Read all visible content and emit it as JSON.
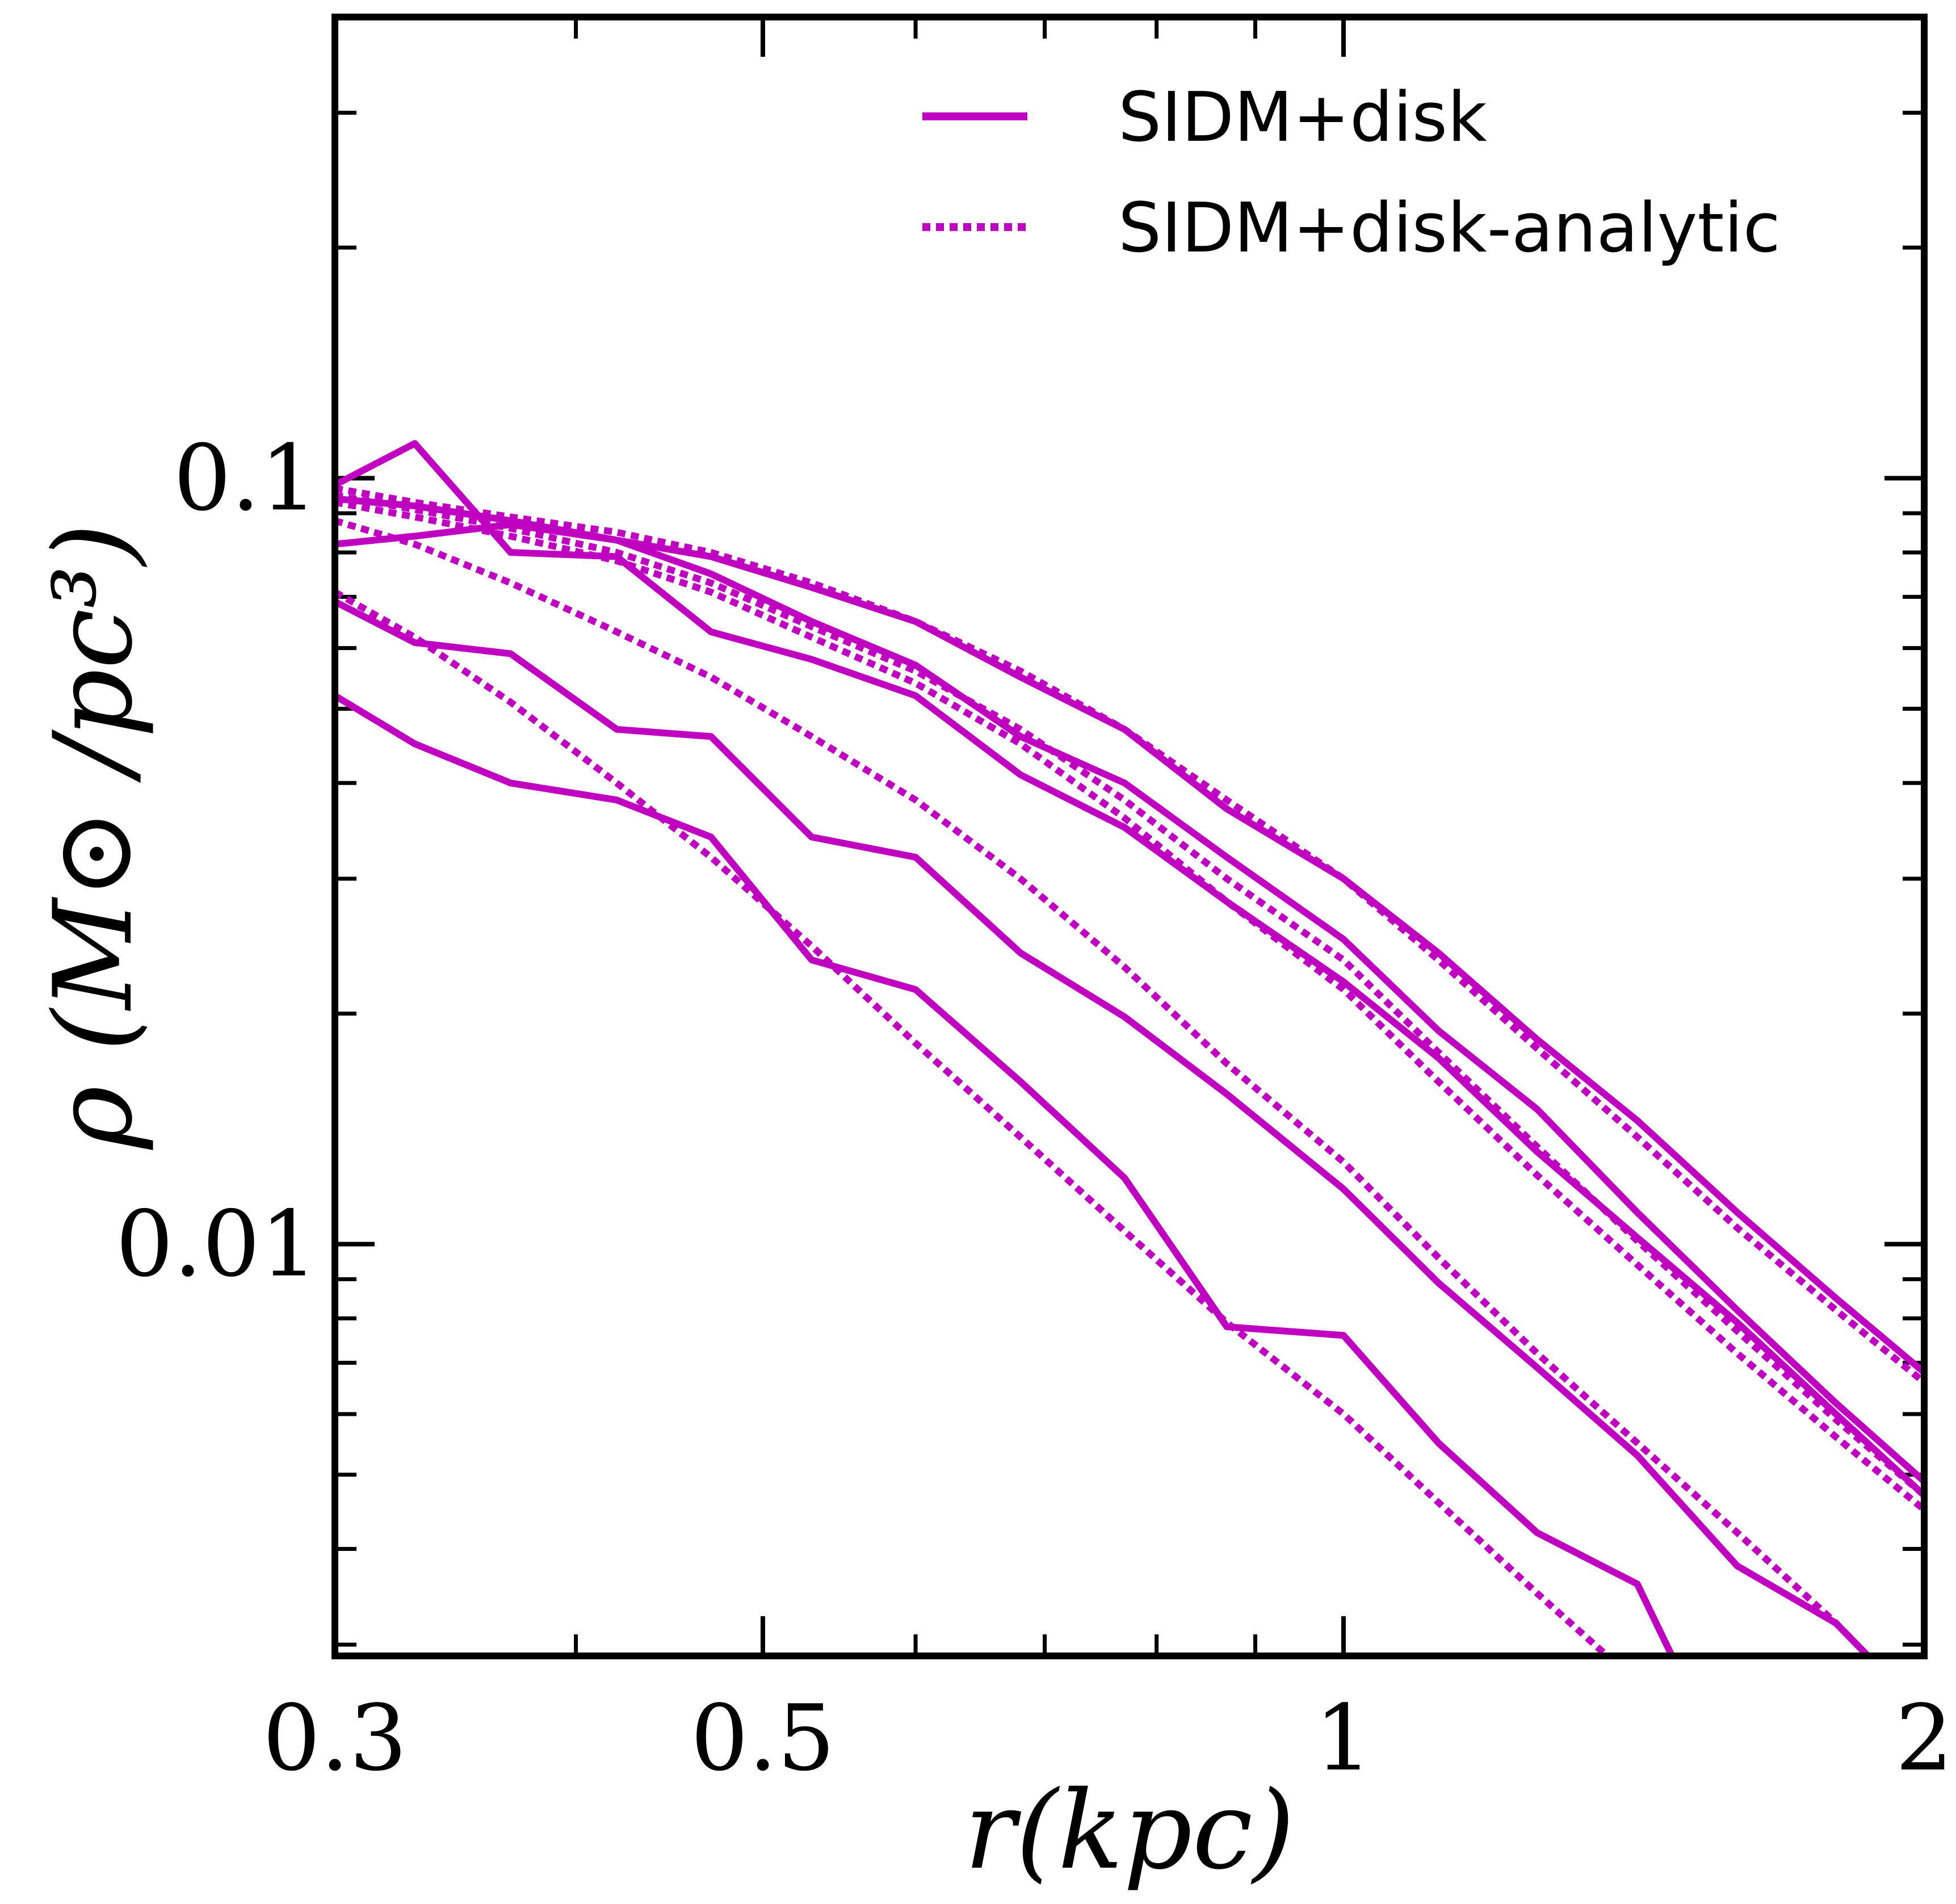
{
  "chart_data": {
    "type": "line",
    "title": "",
    "xlabel": "r(kpc)",
    "ylabel": "ρ (M⊙ /pc³)",
    "xscale": "log",
    "yscale": "log",
    "xlim": [
      0.3,
      2.0
    ],
    "ylim": [
      0.0029,
      0.4
    ],
    "xticks": [
      0.3,
      0.5,
      1,
      2
    ],
    "xtick_labels": [
      "0.3",
      "0.5",
      "1",
      "2"
    ],
    "yticks": [
      0.01,
      0.1
    ],
    "ytick_labels": [
      "0.01",
      "0.1"
    ],
    "color": "#c000c0",
    "legend": {
      "position": "top-right",
      "entries": [
        {
          "label": "SIDM+disk",
          "style": "solid"
        },
        {
          "label": "SIDM+disk-analytic",
          "style": "dotted"
        }
      ]
    },
    "series": [
      {
        "name": "SIDM+disk 1",
        "style": "solid",
        "x": [
          0.3,
          0.33,
          0.37,
          0.42,
          0.47,
          0.53,
          0.6,
          0.68,
          0.77,
          0.87,
          1.0,
          1.12,
          1.26,
          1.42,
          1.6,
          1.8,
          2.0
        ],
        "y": [
          0.082,
          0.084,
          0.087,
          0.083,
          0.079,
          0.072,
          0.065,
          0.055,
          0.047,
          0.037,
          0.03,
          0.024,
          0.0185,
          0.0145,
          0.011,
          0.0085,
          0.0068
        ]
      },
      {
        "name": "SIDM+disk 2",
        "style": "solid",
        "x": [
          0.3,
          0.33,
          0.37,
          0.42,
          0.47,
          0.53,
          0.6,
          0.68,
          0.77,
          0.87,
          1.0,
          1.12,
          1.26,
          1.42,
          1.6,
          1.8,
          2.0
        ],
        "y": [
          0.094,
          0.092,
          0.088,
          0.083,
          0.075,
          0.065,
          0.057,
          0.046,
          0.04,
          0.032,
          0.025,
          0.019,
          0.015,
          0.011,
          0.0082,
          0.0062,
          0.0049
        ]
      },
      {
        "name": "SIDM+disk 3",
        "style": "solid",
        "x": [
          0.3,
          0.33,
          0.37,
          0.42,
          0.47,
          0.53,
          0.6,
          0.68,
          0.77,
          0.87,
          1.0,
          1.12,
          1.26,
          1.42,
          1.6,
          1.8,
          2.0
        ],
        "y": [
          0.098,
          0.111,
          0.08,
          0.079,
          0.063,
          0.058,
          0.052,
          0.041,
          0.035,
          0.028,
          0.022,
          0.0175,
          0.0132,
          0.0102,
          0.0079,
          0.006,
          0.0047
        ]
      },
      {
        "name": "SIDM+disk 4",
        "style": "solid",
        "x": [
          0.3,
          0.33,
          0.37,
          0.42,
          0.47,
          0.53,
          0.6,
          0.68,
          0.77,
          0.87,
          1.0,
          1.12,
          1.26,
          1.42,
          1.6,
          1.8,
          1.87
        ],
        "y": [
          0.069,
          0.061,
          0.059,
          0.047,
          0.046,
          0.034,
          0.032,
          0.024,
          0.0198,
          0.0157,
          0.0118,
          0.0089,
          0.0069,
          0.0053,
          0.0038,
          0.0032,
          0.0029
        ]
      },
      {
        "name": "SIDM+disk 5",
        "style": "solid",
        "x": [
          0.3,
          0.33,
          0.37,
          0.42,
          0.47,
          0.53,
          0.6,
          0.68,
          0.77,
          0.87,
          1.0,
          1.12,
          1.26,
          1.42,
          1.48
        ],
        "y": [
          0.052,
          0.045,
          0.04,
          0.038,
          0.034,
          0.0235,
          0.0215,
          0.0163,
          0.0122,
          0.0078,
          0.0076,
          0.0055,
          0.0042,
          0.0036,
          0.0029
        ]
      },
      {
        "name": "SIDM+disk-analytic 1",
        "style": "dotted",
        "x": [
          0.3,
          0.33,
          0.37,
          0.42,
          0.47,
          0.53,
          0.6,
          0.68,
          0.77,
          0.87,
          1.0,
          1.12,
          1.26,
          1.42,
          1.6,
          1.8,
          2.0
        ],
        "y": [
          0.097,
          0.093,
          0.089,
          0.085,
          0.08,
          0.073,
          0.065,
          0.056,
          0.047,
          0.038,
          0.03,
          0.0235,
          0.018,
          0.0138,
          0.0105,
          0.0082,
          0.0066
        ]
      },
      {
        "name": "SIDM+disk-analytic 2",
        "style": "dotted",
        "x": [
          0.3,
          0.33,
          0.37,
          0.42,
          0.47,
          0.53,
          0.6,
          0.68,
          0.77,
          0.87,
          1.0,
          1.12,
          1.26,
          1.42,
          1.6,
          1.8,
          2.0
        ],
        "y": [
          0.095,
          0.091,
          0.086,
          0.08,
          0.073,
          0.064,
          0.056,
          0.047,
          0.038,
          0.03,
          0.0235,
          0.0178,
          0.0134,
          0.0101,
          0.0077,
          0.0059,
          0.0047
        ]
      },
      {
        "name": "SIDM+disk-analytic 3",
        "style": "dotted",
        "x": [
          0.3,
          0.33,
          0.37,
          0.42,
          0.47,
          0.53,
          0.6,
          0.68,
          0.77,
          0.87,
          1.0,
          1.12,
          1.26,
          1.42,
          1.6,
          1.8,
          2.0
        ],
        "y": [
          0.093,
          0.089,
          0.084,
          0.078,
          0.071,
          0.062,
          0.054,
          0.045,
          0.036,
          0.028,
          0.0215,
          0.0163,
          0.0123,
          0.0094,
          0.0072,
          0.0056,
          0.0045
        ]
      },
      {
        "name": "SIDM+disk-analytic 4",
        "style": "dotted",
        "x": [
          0.3,
          0.33,
          0.37,
          0.42,
          0.47,
          0.53,
          0.6,
          0.68,
          0.77,
          0.87,
          1.0,
          1.12,
          1.26,
          1.42,
          1.6,
          1.8,
          1.87
        ],
        "y": [
          0.088,
          0.082,
          0.073,
          0.063,
          0.055,
          0.046,
          0.038,
          0.03,
          0.023,
          0.0172,
          0.0128,
          0.0096,
          0.0072,
          0.0055,
          0.0042,
          0.0032,
          0.0029
        ]
      },
      {
        "name": "SIDM+disk-analytic 5",
        "style": "dotted",
        "x": [
          0.3,
          0.33,
          0.37,
          0.42,
          0.47,
          0.53,
          0.6,
          0.68,
          0.77,
          0.87,
          1.0,
          1.12,
          1.26,
          1.37
        ],
        "y": [
          0.071,
          0.062,
          0.051,
          0.04,
          0.032,
          0.0245,
          0.0183,
          0.0138,
          0.0104,
          0.0079,
          0.006,
          0.0046,
          0.0035,
          0.0029
        ]
      }
    ]
  }
}
